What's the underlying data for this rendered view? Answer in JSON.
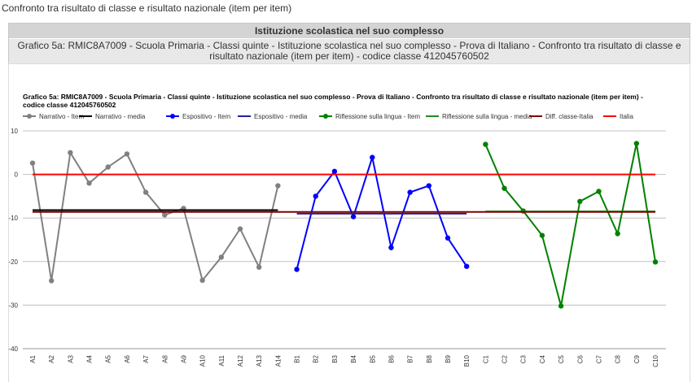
{
  "header": {
    "text": "Confronto tra risultato di classe e risultato nazionale (item per item)"
  },
  "panel": {
    "title": "Istituzione scolastica nel suo complesso",
    "subtitle": "Grafico 5a: RMIC8A7009 - Scuola Primaria - Classi quinte - Istituzione scolastica nel suo complesso - Prova di Italiano - Confronto tra risultato di classe e risultato nazionale (item per item) - codice classe 412045760502"
  },
  "chart_data": {
    "type": "line",
    "title": "Grafico 5a: RMIC8A7009 - Scuola Primaria - Classi quinte - Istituzione scolastica nel suo complesso - Prova di Italiano - Confronto tra risultato di classe e risultato nazionale (item per item) - codice classe 412045760502",
    "categories": [
      "A1",
      "A2",
      "A3",
      "A4",
      "A5",
      "A6",
      "A7",
      "A8",
      "A9",
      "A10",
      "A11",
      "A12",
      "A13",
      "A14",
      "B1",
      "B2",
      "B3",
      "B4",
      "B5",
      "B6",
      "B7",
      "B8",
      "B9",
      "B10",
      "C1",
      "C2",
      "C3",
      "C4",
      "C5",
      "C6",
      "C7",
      "C8",
      "C9",
      "C10"
    ],
    "ylim": [
      -40,
      10
    ],
    "yticks": [
      -40,
      -30,
      -20,
      -10,
      0,
      10
    ],
    "grid": true,
    "series": [
      {
        "name": "Narrativo - Item",
        "color": "#808080",
        "markers": true,
        "values": [
          2.6,
          -24.4,
          5,
          -2,
          1.7,
          4.7,
          -4.1,
          -9.3,
          -7.8,
          -24.3,
          -19,
          -12.5,
          -21.3,
          -2.6,
          null,
          null,
          null,
          null,
          null,
          null,
          null,
          null,
          null,
          null,
          null,
          null,
          null,
          null,
          null,
          null,
          null,
          null,
          null,
          null
        ]
      },
      {
        "name": "Narrativo - media",
        "color": "#000000",
        "markers": false,
        "values": [
          -8.2,
          -8.2,
          -8.2,
          -8.2,
          -8.2,
          -8.2,
          -8.2,
          -8.2,
          -8.2,
          -8.2,
          -8.2,
          -8.2,
          -8.2,
          -8.2,
          null,
          null,
          null,
          null,
          null,
          null,
          null,
          null,
          null,
          null,
          null,
          null,
          null,
          null,
          null,
          null,
          null,
          null,
          null,
          null
        ]
      },
      {
        "name": "Espositivo - Item",
        "color": "#0000ff",
        "markers": true,
        "values": [
          null,
          null,
          null,
          null,
          null,
          null,
          null,
          null,
          null,
          null,
          null,
          null,
          null,
          null,
          -21.8,
          -5,
          0.7,
          -9.7,
          3.9,
          -16.8,
          -4.1,
          -2.6,
          -14.6,
          -21.1,
          null,
          null,
          null,
          null,
          null,
          null,
          null,
          null,
          null,
          null
        ]
      },
      {
        "name": "Espositivo - media",
        "color": "#22229b",
        "markers": false,
        "values": [
          null,
          null,
          null,
          null,
          null,
          null,
          null,
          null,
          null,
          null,
          null,
          null,
          null,
          null,
          -9,
          -9,
          -9,
          -9,
          -9,
          -9,
          -9,
          -9,
          -9,
          -9,
          null,
          null,
          null,
          null,
          null,
          null,
          null,
          null,
          null,
          null
        ]
      },
      {
        "name": "Riflessione sulla lingua - Item",
        "color": "#008000",
        "markers": true,
        "values": [
          null,
          null,
          null,
          null,
          null,
          null,
          null,
          null,
          null,
          null,
          null,
          null,
          null,
          null,
          null,
          null,
          null,
          null,
          null,
          null,
          null,
          null,
          null,
          null,
          6.9,
          -3.2,
          -8.4,
          -14,
          -30.2,
          -6.2,
          -3.9,
          -13.6,
          7.1,
          -20.1
        ]
      },
      {
        "name": "Riflessione sulla lingua - media",
        "color": "#228b22",
        "markers": false,
        "values": [
          null,
          null,
          null,
          null,
          null,
          null,
          null,
          null,
          null,
          null,
          null,
          null,
          null,
          null,
          null,
          null,
          null,
          null,
          null,
          null,
          null,
          null,
          null,
          null,
          -8.5,
          -8.5,
          -8.5,
          -8.5,
          -8.5,
          -8.5,
          -8.5,
          -8.5,
          -8.5,
          -8.5
        ]
      },
      {
        "name": "Diff. classe-Italia",
        "color": "#800000",
        "markers": false,
        "values": [
          -8.6,
          -8.6,
          -8.6,
          -8.6,
          -8.6,
          -8.6,
          -8.6,
          -8.6,
          -8.6,
          -8.6,
          -8.6,
          -8.6,
          -8.6,
          -8.6,
          -8.6,
          -8.6,
          -8.6,
          -8.6,
          -8.6,
          -8.6,
          -8.6,
          -8.6,
          -8.6,
          -8.6,
          -8.6,
          -8.6,
          -8.6,
          -8.6,
          -8.6,
          -8.6,
          -8.6,
          -8.6,
          -8.6,
          -8.6
        ]
      },
      {
        "name": "Italia",
        "color": "#ff0000",
        "markers": false,
        "values": [
          0,
          0,
          0,
          0,
          0,
          0,
          0,
          0,
          0,
          0,
          0,
          0,
          0,
          0,
          0,
          0,
          0,
          0,
          0,
          0,
          0,
          0,
          0,
          0,
          0,
          0,
          0,
          0,
          0,
          0,
          0,
          0,
          0,
          0
        ]
      }
    ]
  }
}
